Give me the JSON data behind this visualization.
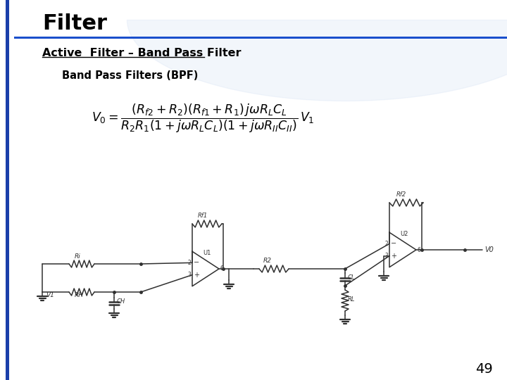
{
  "title": "Filter",
  "subtitle": "Active  Filter – Band Pass Filter",
  "section_label": "Band Pass Filters (BPF)",
  "page_number": "49",
  "bg_color": "#ffffff",
  "title_color": "#000000",
  "subtitle_color": "#000000",
  "accent_blue": "#1a3faa",
  "line_blue": "#1a4fcc",
  "watermark_color": "#c8d8f0",
  "circuit_color": "#303030"
}
